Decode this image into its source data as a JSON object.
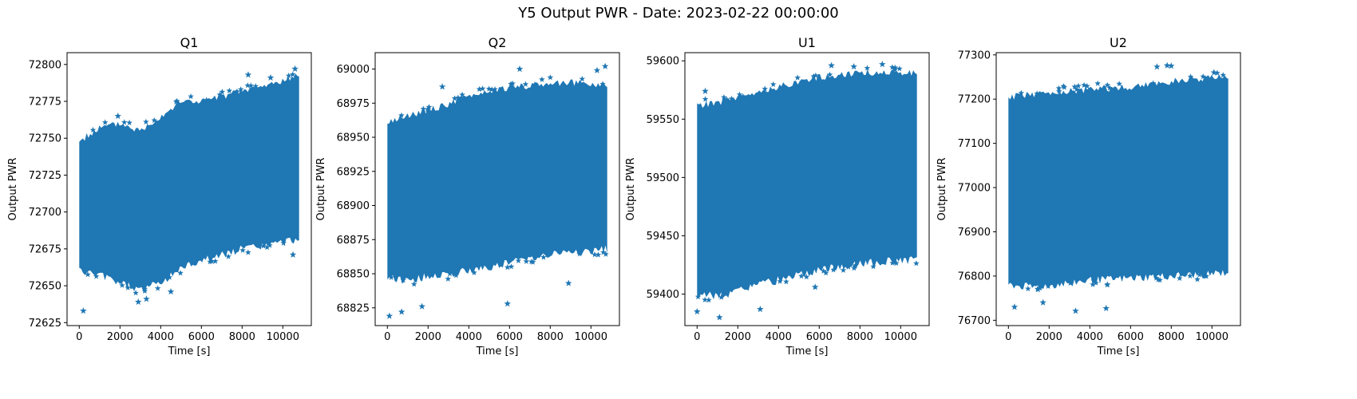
{
  "figure": {
    "title": "Y5 Output PWR - Date: 2023-02-22 00:00:00",
    "marker_color": "#1f77b4",
    "marker": "star"
  },
  "chart_data": [
    {
      "type": "scatter",
      "title": "Q1",
      "xlabel": "Time [s]",
      "ylabel": "Output PWR",
      "xlim": [
        -600,
        11400
      ],
      "ylim": [
        72623,
        72808
      ],
      "xticks": [
        0,
        2000,
        4000,
        6000,
        8000,
        10000
      ],
      "yticks": [
        72625,
        72650,
        72675,
        72700,
        72725,
        72750,
        72775,
        72800
      ],
      "band": {
        "x": [
          0,
          1000,
          2000,
          3000,
          4000,
          5000,
          6000,
          7000,
          8000,
          9000,
          10000,
          10800
        ],
        "upper": [
          72748,
          72757,
          72760,
          72755,
          72765,
          72775,
          72775,
          72778,
          72782,
          72785,
          72789,
          72793
        ],
        "lower": [
          72660,
          72657,
          72652,
          72647,
          72652,
          72662,
          72667,
          72671,
          72675,
          72677,
          72679,
          72682
        ]
      },
      "outliers": [
        [
          200,
          72633
        ],
        [
          2900,
          72639
        ],
        [
          3300,
          72641
        ],
        [
          4500,
          72646
        ],
        [
          10500,
          72671
        ],
        [
          8300,
          72793
        ],
        [
          10600,
          72797
        ],
        [
          9400,
          72791
        ],
        [
          1900,
          72765
        ]
      ],
      "grid": false
    },
    {
      "type": "scatter",
      "title": "Q2",
      "xlabel": "Time [s]",
      "ylabel": "Output PWR",
      "xlim": [
        -600,
        11400
      ],
      "ylim": [
        68812,
        69012
      ],
      "xticks": [
        0,
        2000,
        4000,
        6000,
        8000,
        10000
      ],
      "yticks": [
        68825,
        68850,
        68875,
        68900,
        68925,
        68950,
        68975,
        69000
      ],
      "band": {
        "x": [
          0,
          1000,
          2000,
          3000,
          4000,
          5000,
          6000,
          7000,
          8000,
          9000,
          10000,
          10800
        ],
        "upper": [
          68962,
          68966,
          68970,
          68974,
          68980,
          68984,
          68986,
          68988,
          68990,
          68990,
          68989,
          68988
        ],
        "lower": [
          68848,
          68845,
          68848,
          68850,
          68852,
          68855,
          68858,
          68862,
          68864,
          68866,
          68866,
          68868
        ]
      },
      "outliers": [
        [
          100,
          68819
        ],
        [
          700,
          68822
        ],
        [
          1700,
          68826
        ],
        [
          5900,
          68828
        ],
        [
          8900,
          68843
        ],
        [
          10700,
          69002
        ],
        [
          10300,
          68999
        ],
        [
          6500,
          69000
        ],
        [
          2700,
          68987
        ]
      ],
      "grid": false
    },
    {
      "type": "scatter",
      "title": "U1",
      "xlabel": "Time [s]",
      "ylabel": "Output PWR",
      "xlim": [
        -600,
        11400
      ],
      "ylim": [
        59373,
        59607
      ],
      "xticks": [
        0,
        2000,
        4000,
        6000,
        8000,
        10000
      ],
      "yticks": [
        59400,
        59450,
        59500,
        59550,
        59600
      ],
      "band": {
        "x": [
          0,
          1000,
          2000,
          3000,
          4000,
          5000,
          6000,
          7000,
          8000,
          9000,
          10000,
          10800
        ],
        "upper": [
          59562,
          59564,
          59568,
          59572,
          59578,
          59582,
          59586,
          59588,
          59590,
          59590,
          59590,
          59590
        ],
        "lower": [
          59400,
          59398,
          59402,
          59408,
          59412,
          59418,
          59420,
          59424,
          59426,
          59428,
          59428,
          59430
        ],
        "lower_texture_seed": 3
      },
      "outliers": [
        [
          0,
          59385
        ],
        [
          1100,
          59380
        ],
        [
          3100,
          59387
        ],
        [
          5800,
          59406
        ],
        [
          9100,
          59597
        ],
        [
          6600,
          59596
        ],
        [
          7700,
          59595
        ],
        [
          400,
          59574
        ]
      ],
      "grid": false
    },
    {
      "type": "scatter",
      "title": "U2",
      "xlabel": "Time [s]",
      "ylabel": "Output PWR",
      "xlim": [
        -600,
        11400
      ],
      "ylim": [
        76688,
        77305
      ],
      "xticks": [
        0,
        2000,
        4000,
        6000,
        8000,
        10000
      ],
      "yticks": [
        76700,
        76800,
        76900,
        77000,
        77100,
        77200,
        77300
      ],
      "band": {
        "x": [
          0,
          1000,
          2000,
          3000,
          4000,
          5000,
          6000,
          7000,
          8000,
          9000,
          10000,
          10800
        ],
        "upper": [
          77205,
          77210,
          77215,
          77218,
          77222,
          77225,
          77228,
          77232,
          77240,
          77245,
          77248,
          77250
        ],
        "lower": [
          76780,
          76775,
          76778,
          76785,
          76790,
          76792,
          76795,
          76798,
          76800,
          76802,
          76805,
          76808
        ]
      },
      "outliers": [
        [
          300,
          76730
        ],
        [
          3300,
          76721
        ],
        [
          4800,
          76727
        ],
        [
          1700,
          76740
        ],
        [
          7800,
          77276
        ],
        [
          7300,
          77273
        ],
        [
          8000,
          77275
        ],
        [
          10100,
          77260
        ]
      ],
      "grid": false
    }
  ]
}
